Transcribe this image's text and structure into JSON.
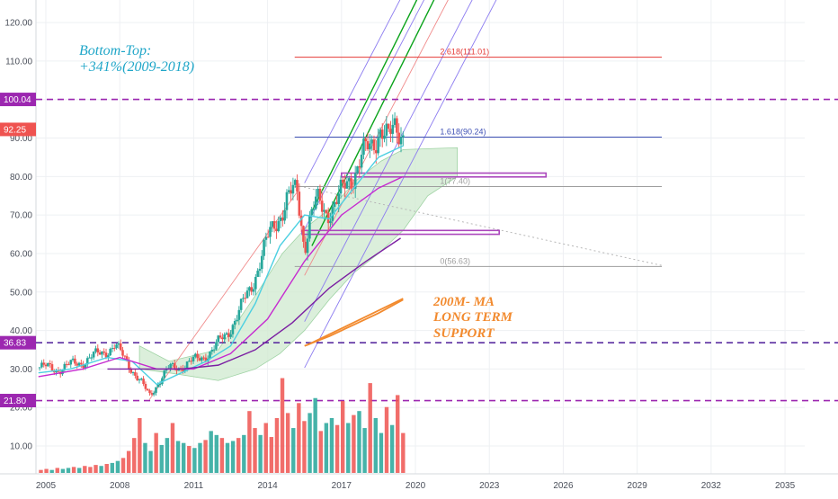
{
  "chart_data": {
    "type": "line",
    "title": "",
    "xlabel": "",
    "ylabel": "",
    "xlim": [
      2004.6,
      2035.8
    ],
    "ylim": [
      3,
      124
    ],
    "x_ticks": [
      "2005",
      "2008",
      "2011",
      "2014",
      "2017",
      "2020",
      "2023",
      "2026",
      "2029",
      "2032",
      "2035"
    ],
    "y_ticks": [
      "10.00",
      "20.00",
      "30.00",
      "40.00",
      "50.00",
      "60.00",
      "70.00",
      "80.00",
      "90.00",
      "100.00",
      "110.00",
      "120.00"
    ],
    "price_labels": [
      {
        "value": 100.04,
        "text": "100.04",
        "color": "#9c27b0"
      },
      {
        "value": 92.25,
        "text": "92.25",
        "color": "#ef5350"
      },
      {
        "value": 36.83,
        "text": "36.83",
        "color": "#9c27b0"
      },
      {
        "value": 21.8,
        "text": "21.80",
        "color": "#9c27b0"
      }
    ],
    "horizontal_levels": [
      {
        "value": 100.04,
        "color": "#9c27b0",
        "style": "dashed"
      },
      {
        "value": 36.83,
        "color": "#5b2fa0",
        "style": "dashed"
      },
      {
        "value": 21.8,
        "color": "#9c27b0",
        "style": "dashed"
      }
    ],
    "fib_levels": [
      {
        "label": "2.618(111.01)",
        "value": 111.01,
        "color": "#e53935"
      },
      {
        "label": "1.618(90.24)",
        "value": 90.24,
        "color": "#3f51b5"
      },
      {
        "label": "1(77.40)",
        "value": 77.4,
        "color": "#9e9e9e"
      },
      {
        "label": "0(56.63)",
        "value": 56.63,
        "color": "#9e9e9e"
      }
    ],
    "zones": [
      {
        "x": [
          2017.0,
          2025.3
        ],
        "y": [
          79.9,
          80.9
        ],
        "color": "#ab47bc"
      },
      {
        "x": [
          2015.4,
          2023.4
        ],
        "y": [
          65.0,
          66.0
        ],
        "color": "#ab47bc"
      }
    ],
    "series": [
      {
        "name": "",
        "kind": "close",
        "color": "#26a69a",
        "x": [
          2004.7,
          2005.5,
          2006.5,
          2007.2,
          2007.8,
          2008.4,
          2008.9,
          2009.2,
          2009.6,
          2010.0,
          2010.6,
          2011.0,
          2011.3,
          2011.8,
          2012.3,
          2012.8,
          2013.3,
          2013.8,
          2014.3,
          2014.8,
          2015.2,
          2015.5,
          2015.7,
          2016.0,
          2016.4,
          2016.9,
          2017.3,
          2017.8,
          2018.2,
          2018.6,
          2018.9,
          2019.2,
          2019.5
        ],
        "y": [
          30.5,
          30,
          32,
          34,
          36,
          31,
          26,
          23,
          27,
          30,
          31,
          32,
          33,
          35,
          39,
          44,
          51,
          60,
          68,
          74,
          76,
          62,
          69,
          73,
          71,
          74,
          79,
          85,
          87,
          94,
          89,
          92,
          92.25
        ]
      },
      {
        "name": "",
        "kind": "ma_short",
        "color": "#4dd0e1",
        "x": [
          2004.7,
          2006,
          2007.5,
          2008.5,
          2009.5,
          2010.5,
          2011.5,
          2012.5,
          2013.5,
          2014.5,
          2015.5,
          2016.5,
          2017.5,
          2018.5,
          2019.5
        ],
        "y": [
          29,
          30,
          33,
          32,
          26,
          29,
          32,
          36,
          47,
          62,
          70,
          69,
          77,
          85,
          88
        ]
      },
      {
        "name": "",
        "kind": "ma_mid",
        "color": "#c62ad0",
        "x": [
          2004.7,
          2006.5,
          2008.0,
          2009.5,
          2011.0,
          2012.5,
          2014.0,
          2015.5,
          2017.0,
          2018.5,
          2019.5
        ],
        "y": [
          28,
          30,
          33,
          30,
          30,
          34,
          43,
          58,
          70,
          77,
          80
        ]
      },
      {
        "name": "",
        "kind": "ma_long",
        "color": "#7b1fa2",
        "x": [
          2007.5,
          2009,
          2010.5,
          2012,
          2013.5,
          2015,
          2016.5,
          2018,
          2019.4
        ],
        "y": [
          30,
          30,
          30,
          31,
          35,
          42,
          51,
          58,
          64
        ]
      },
      {
        "name": "200M- MA",
        "kind": "ma_200",
        "color": "#f28a2e",
        "x": [
          2015.5,
          2016.5,
          2017.5,
          2018.5,
          2019.5
        ],
        "y": [
          36,
          38.5,
          41.5,
          44.5,
          48
        ]
      }
    ],
    "volume_relative": [
      0.03,
      0.04,
      0.03,
      0.05,
      0.04,
      0.05,
      0.06,
      0.05,
      0.07,
      0.06,
      0.08,
      0.07,
      0.09,
      0.1,
      0.12,
      0.15,
      0.22,
      0.35,
      0.55,
      0.3,
      0.22,
      0.4,
      0.28,
      0.35,
      0.5,
      0.32,
      0.3,
      0.27,
      0.25,
      0.3,
      0.33,
      0.42,
      0.38,
      0.35,
      0.3,
      0.32,
      0.35,
      0.38,
      0.62,
      0.45,
      0.38,
      0.5,
      0.36,
      0.55,
      0.95,
      0.6,
      0.45,
      0.7,
      0.52,
      0.6,
      0.75,
      0.42,
      0.5,
      0.55,
      0.48,
      0.72,
      0.5,
      0.58,
      0.62,
      0.45,
      0.9,
      0.55,
      0.4,
      0.66,
      0.48,
      0.78,
      0.4
    ],
    "annotations": [
      {
        "text_line1": "Bottom-Top:",
        "text_line2": "+341%(2009-2018)",
        "color": "#1fa6c8"
      },
      {
        "text_line1": "200M- MA",
        "text_line2": "LONG TERM",
        "text_line3": "SUPPORT",
        "color": "#f28a2e"
      }
    ],
    "colors": {
      "up": "#26a69a",
      "down": "#ef5350",
      "channel": "#0aa31a",
      "pitchfork": "#8c7cf0",
      "cloud": "#cfe9cf",
      "grid": "#eef0f3"
    }
  }
}
